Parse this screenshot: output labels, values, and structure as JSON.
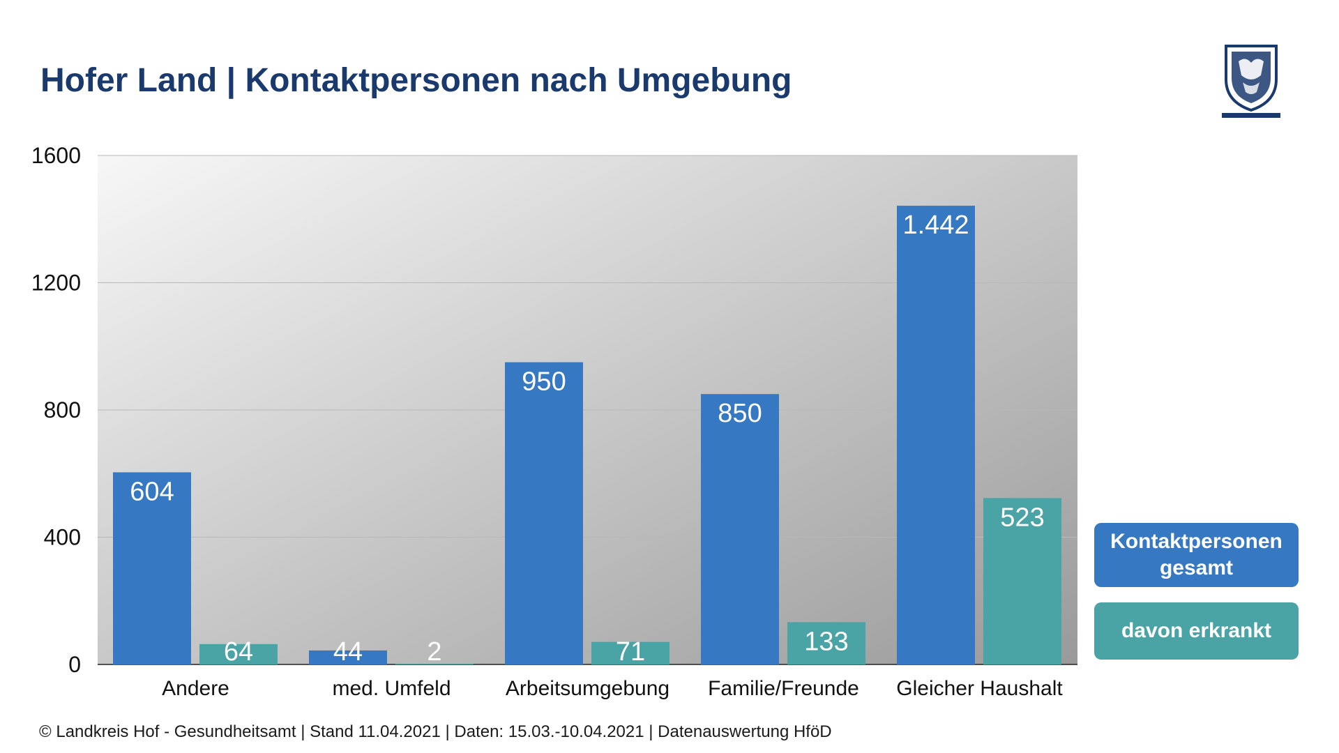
{
  "header": {
    "title": "Hofer Land | Kontaktpersonen nach Umgebung"
  },
  "logo": {
    "icon": "coat-of-arms-icon"
  },
  "colors": {
    "kontaktpersonen": "#3679c2",
    "erkrankt": "#4aa3a4",
    "title": "#1a3a6e"
  },
  "legend": {
    "items": [
      "Kontaktpersonen gesamt",
      "davon erkrankt"
    ]
  },
  "chart_data": {
    "type": "bar",
    "categories": [
      "Andere",
      "med. Umfeld",
      "Arbeitsumgebung",
      "Familie/Freunde",
      "Gleicher Haushalt"
    ],
    "series": [
      {
        "name": "Kontaktpersonen gesamt",
        "values": [
          604,
          44,
          950,
          850,
          1442
        ],
        "labels": [
          "604",
          "44",
          "950",
          "850",
          "1.442"
        ]
      },
      {
        "name": "davon erkrankt",
        "values": [
          64,
          2,
          71,
          133,
          523
        ],
        "labels": [
          "64",
          "2",
          "71",
          "133",
          "523"
        ]
      }
    ],
    "yticks": [
      "0",
      "400",
      "800",
      "1200",
      "1600"
    ],
    "ylim": [
      0,
      1600
    ],
    "grid": true,
    "legend_position": "right"
  },
  "footer": {
    "text": "© Landkreis Hof - Gesundheitsamt | Stand 11.04.2021 | Daten: 15.03.-10.04.2021 | Datenauswertung HföD"
  }
}
